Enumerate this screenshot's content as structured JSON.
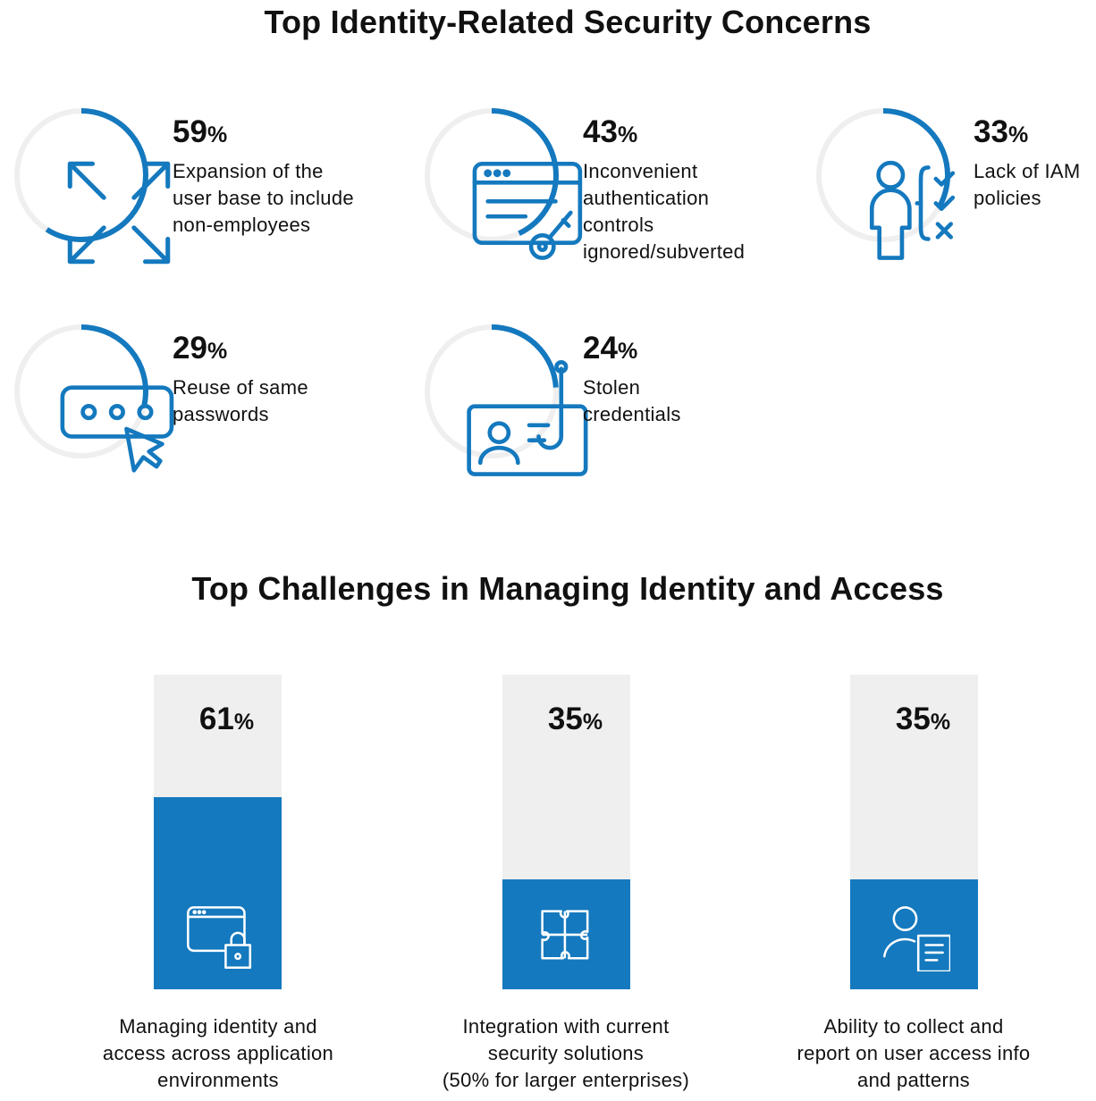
{
  "titles": {
    "concerns": "Top Identity-Related Security Concerns",
    "challenges": "Top Challenges in Managing Identity and Access"
  },
  "colors": {
    "accent": "#1479be",
    "track": "#efefef",
    "text": "#111111"
  },
  "percent_symbol": "%",
  "chart_data": [
    {
      "type": "pie",
      "title": "Top Identity-Related Security Concerns",
      "items": [
        {
          "value": 59,
          "value_label": "59",
          "label_lines": [
            "Expansion of the",
            "user base to include",
            "non-employees"
          ],
          "icon": "expand-arrows-icon"
        },
        {
          "value": 43,
          "value_label": "43",
          "label_lines": [
            "Inconvenient",
            "authentication",
            "controls",
            "ignored/subverted"
          ],
          "icon": "browser-key-icon"
        },
        {
          "value": 33,
          "value_label": "33",
          "label_lines": [
            "Lack of IAM",
            "policies"
          ],
          "icon": "person-checklist-icon"
        },
        {
          "value": 29,
          "value_label": "29",
          "label_lines": [
            "Reuse of same",
            "passwords"
          ],
          "icon": "password-cursor-icon"
        },
        {
          "value": 24,
          "value_label": "24",
          "label_lines": [
            "Stolen",
            "credentials"
          ],
          "icon": "phishing-id-card-icon"
        }
      ]
    },
    {
      "type": "bar",
      "title": "Top Challenges in Managing Identity and Access",
      "ylim": [
        0,
        100
      ],
      "categories": [
        "Managing identity and access across application environments",
        "Integration with current security solutions (50% for larger enterprises)",
        "Ability to collect and report on user access info and patterns"
      ],
      "values": [
        61,
        35,
        35
      ],
      "items": [
        {
          "value": 61,
          "value_label": "61",
          "label_lines": [
            "Managing identity and",
            "access across application",
            "environments"
          ],
          "icon": "browser-lock-icon"
        },
        {
          "value": 35,
          "value_label": "35",
          "label_lines": [
            "Integration with current",
            "security solutions",
            "(50% for larger enterprises)"
          ],
          "icon": "puzzle-icon"
        },
        {
          "value": 35,
          "value_label": "35",
          "label_lines": [
            "Ability to collect and",
            "report on user access info",
            "and patterns"
          ],
          "icon": "user-report-icon"
        }
      ]
    }
  ]
}
